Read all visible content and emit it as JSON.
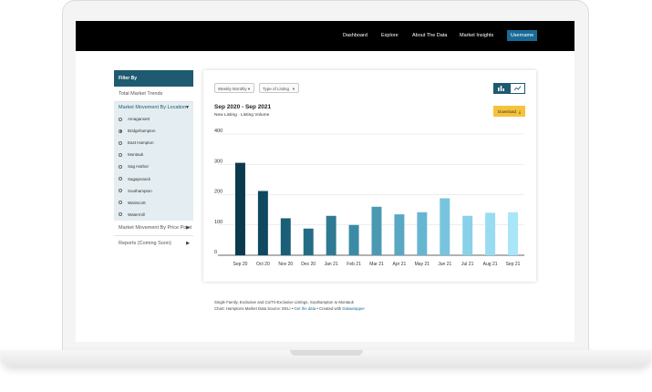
{
  "nav": {
    "items": [
      "Dashboard",
      "Explore",
      "About The Data",
      "Market Insights"
    ],
    "user_button": "Username"
  },
  "sidebar": {
    "header": "Filter By",
    "item_total": "Total Market Trends",
    "group_location": "Market Movement By Location",
    "locations": [
      "Amagansett",
      "Bridgehampton",
      "East Hampton",
      "Montauk",
      "Sag Harbor",
      "Sagaponack",
      "Southampton",
      "Wainscott",
      "Watermill"
    ],
    "selected_location": "Bridgehampton",
    "item_price_point": "Market Movement By Price Point",
    "item_reports": "Reports (Coming Soon)"
  },
  "chart_panel": {
    "period_select": "Weekly Monthly",
    "type_select": "Type of Listing",
    "title": "Sep 2020 - Sep 2021",
    "subtitle": "New Listing · Listing Volume",
    "download_label": "Download"
  },
  "chart_data": {
    "type": "bar",
    "categories": [
      "Sep 20",
      "Oct 20",
      "Nov 20",
      "Dec 20",
      "Jan 21",
      "Feb 21",
      "Mar 21",
      "Apr 21",
      "May 21",
      "Jun 21",
      "Jul 21",
      "Aug 21",
      "Sep 21"
    ],
    "values": [
      305,
      212,
      122,
      88,
      130,
      100,
      160,
      135,
      142,
      188,
      130,
      140,
      142
    ],
    "ylim": [
      0,
      400
    ],
    "yticks": [
      "400",
      "300",
      "200",
      "100",
      "0"
    ],
    "grid": true,
    "colors": [
      "#0b3a4f",
      "#0f4960",
      "#1b5e78",
      "#246c85",
      "#2e7a93",
      "#3b8ba4",
      "#4a99b3",
      "#58a8c3",
      "#67b6d1",
      "#78c4de",
      "#88d1e9",
      "#98dcf1",
      "#a8e6f8"
    ]
  },
  "caption": {
    "line1": "Single Family, Exclusive and Co/Tri-Exclusive Listings, Southampton to Montauk",
    "line2_prefix": "Chart: Hamptons Market Data Source: EELI •",
    "get_data": "Get the data",
    "created_with": "• Created with",
    "datawrapper": "Datawrapper"
  }
}
